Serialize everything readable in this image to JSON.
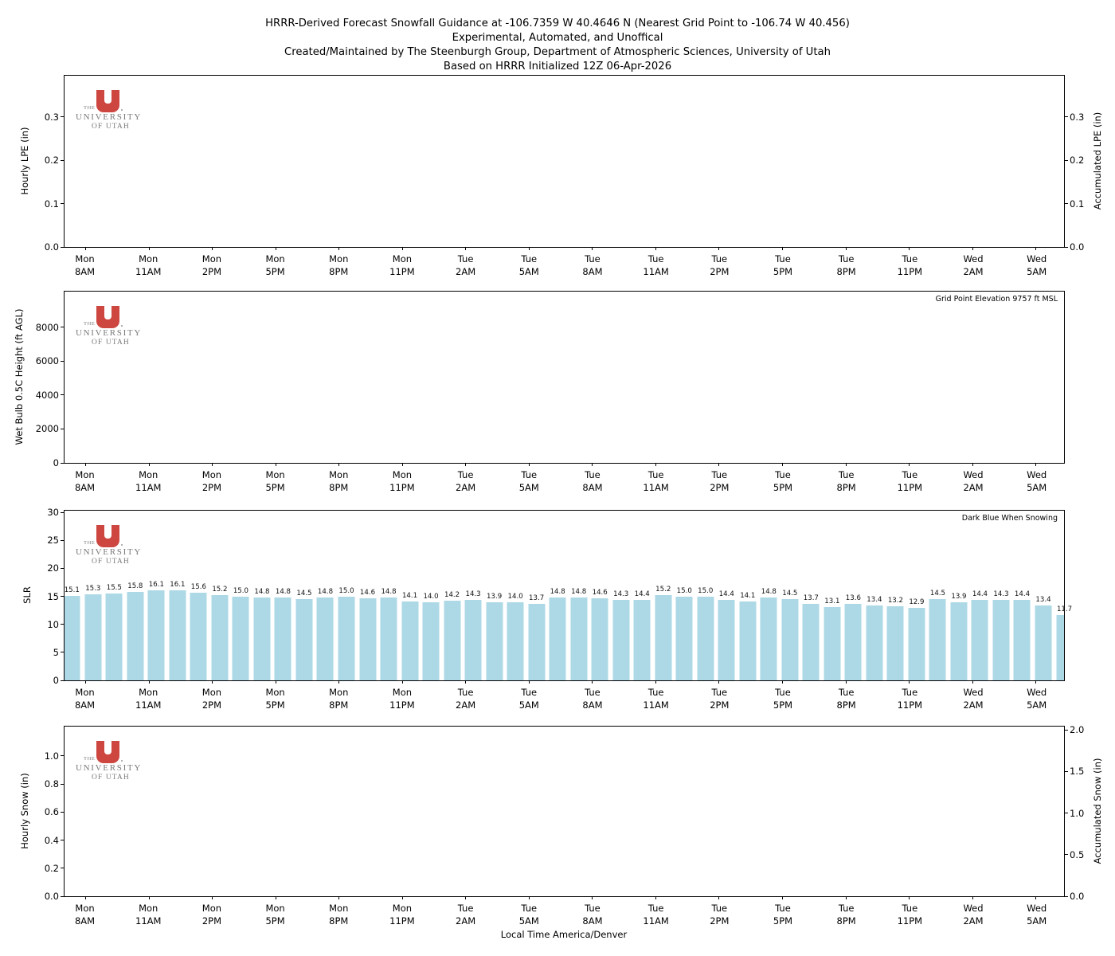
{
  "figure_title": {
    "line1": "HRRR-Derived Forecast Snowfall Guidance at -106.7359 W 40.4646 N (Nearest Grid Point to -106.74 W 40.456)",
    "line2": "Experimental, Automated, and Unoffical",
    "line3": "Created/Maintained by The Steenburgh Group, Department of Atmospheric Sciences, University of Utah",
    "line4": "Based on HRRR Initialized 12Z 06-Apr-2026"
  },
  "logo": {
    "line1": "THE",
    "line2": "UNIVERSITY",
    "line3": "OF UTAH"
  },
  "colors": {
    "bar_fill": "#ADD8E6",
    "logo_red": "#CD4640",
    "logo_text": "#7a7a7a",
    "axis": "#000000"
  },
  "x_axis": {
    "label": "Local Time America/Denver",
    "num_slots": 48,
    "tick_bar_indices": [
      1,
      4,
      7,
      10,
      13,
      16,
      19,
      22,
      25,
      28,
      31,
      34,
      37,
      40,
      43,
      46
    ],
    "tick_labels": [
      [
        "Mon",
        "8AM"
      ],
      [
        "Mon",
        "11AM"
      ],
      [
        "Mon",
        "2PM"
      ],
      [
        "Mon",
        "5PM"
      ],
      [
        "Mon",
        "8PM"
      ],
      [
        "Mon",
        "11PM"
      ],
      [
        "Tue",
        "2AM"
      ],
      [
        "Tue",
        "5AM"
      ],
      [
        "Tue",
        "8AM"
      ],
      [
        "Tue",
        "11AM"
      ],
      [
        "Tue",
        "2PM"
      ],
      [
        "Tue",
        "5PM"
      ],
      [
        "Tue",
        "8PM"
      ],
      [
        "Tue",
        "11PM"
      ],
      [
        "Wed",
        "2AM"
      ],
      [
        "Wed",
        "5AM"
      ]
    ]
  },
  "chart_data": [
    {
      "type": "bar",
      "ylabel": "Hourly LPE (in)",
      "ylabel_right": "Accumulated LPE (in)",
      "ylim": [
        0,
        0.395
      ],
      "yticks": [
        [
          0,
          "0.0"
        ],
        [
          0.1,
          "0.1"
        ],
        [
          0.2,
          "0.2"
        ],
        [
          0.3,
          "0.3"
        ]
      ],
      "ylim_right": [
        0,
        0.395
      ],
      "yticks_right": [
        [
          0,
          "0.0"
        ],
        [
          0.1,
          "0.1"
        ],
        [
          0.2,
          "0.2"
        ],
        [
          0.3,
          "0.3"
        ]
      ],
      "values": [],
      "note": "no precipitation plotted (all zero)"
    },
    {
      "type": "bar",
      "ylabel": "Wet Bulb 0.5C Height (ft AGL)",
      "annotation": "Grid Point Elevation 9757 ft MSL",
      "ylim": [
        0,
        10100
      ],
      "yticks": [
        [
          0,
          "0"
        ],
        [
          2000,
          "2000"
        ],
        [
          4000,
          "4000"
        ],
        [
          6000,
          "6000"
        ],
        [
          8000,
          "8000"
        ]
      ],
      "values": [],
      "note": "no data plotted"
    },
    {
      "type": "bar",
      "ylabel": "SLR",
      "annotation": "Dark Blue When Snowing",
      "ylim": [
        0,
        30.3
      ],
      "yticks": [
        [
          0,
          "0"
        ],
        [
          5,
          "5"
        ],
        [
          10,
          "10"
        ],
        [
          15,
          "15"
        ],
        [
          20,
          "20"
        ],
        [
          25,
          "25"
        ],
        [
          30,
          "30"
        ]
      ],
      "x_start": "Mon 7AM",
      "x_step_hours": 1,
      "values": [
        15.1,
        15.3,
        15.5,
        15.8,
        16.1,
        16.1,
        15.6,
        15.2,
        15.0,
        14.8,
        14.8,
        14.5,
        14.8,
        15.0,
        14.6,
        14.8,
        14.1,
        14.0,
        14.2,
        14.3,
        13.9,
        14.0,
        13.7,
        14.8,
        14.8,
        14.6,
        14.3,
        14.4,
        15.2,
        15.0,
        15.0,
        14.4,
        14.1,
        14.8,
        14.5,
        13.7,
        13.1,
        13.6,
        13.4,
        13.2,
        12.9,
        14.5,
        13.9,
        14.4,
        14.3,
        14.4,
        13.4,
        11.7
      ],
      "bar_color": "#ADD8E6"
    },
    {
      "type": "bar",
      "ylabel": "Hourly Snow (in)",
      "ylabel_right": "Accumulated Snow (in)",
      "ylim": [
        0,
        1.21
      ],
      "yticks": [
        [
          0,
          "0.0"
        ],
        [
          0.2,
          "0.2"
        ],
        [
          0.4,
          "0.4"
        ],
        [
          0.6,
          "0.6"
        ],
        [
          0.8,
          "0.8"
        ],
        [
          1,
          "1.0"
        ]
      ],
      "ylim_right": [
        0,
        2.04
      ],
      "yticks_right": [
        [
          0,
          "0.0"
        ],
        [
          0.5,
          "0.5"
        ],
        [
          1,
          "1.0"
        ],
        [
          1.5,
          "1.5"
        ],
        [
          2,
          "2.0"
        ]
      ],
      "values": [],
      "note": "no snow plotted (all zero)"
    }
  ]
}
